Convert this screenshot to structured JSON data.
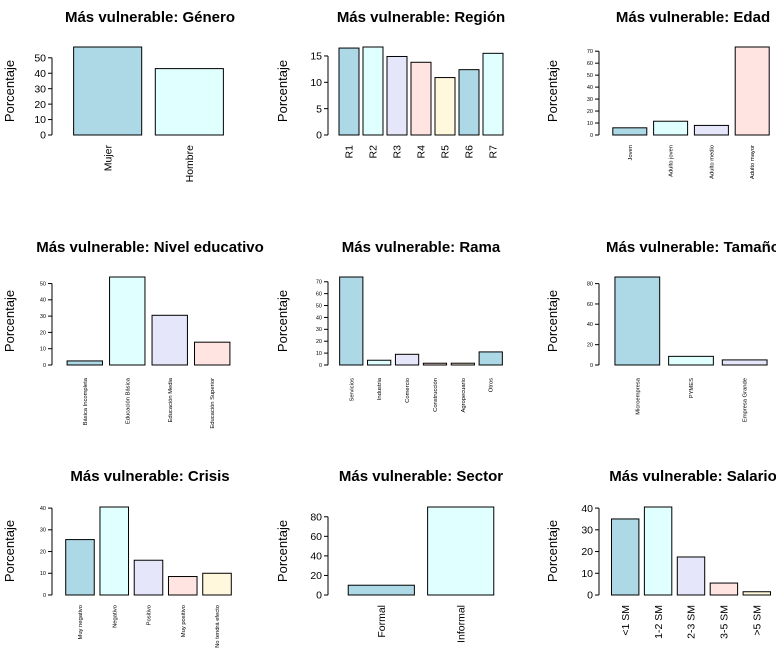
{
  "chart_data": [
    {
      "type": "bar",
      "title": "Más vulnerable: Género",
      "ylabel": "Porcentaje",
      "categories": [
        "Mujer",
        "Hombre"
      ],
      "values": [
        57,
        43
      ],
      "ylim": [
        0,
        57
      ],
      "yticks": [
        0,
        10,
        20,
        30,
        40,
        50
      ],
      "tick_size": "large"
    },
    {
      "type": "bar",
      "title": "Más vulnerable: Región",
      "ylabel": "Porcentaje",
      "categories": [
        "R1",
        "R2",
        "R3",
        "R4",
        "R5",
        "R6",
        "R7"
      ],
      "values": [
        16.5,
        16.7,
        14.9,
        13.8,
        10.9,
        12.4,
        15.5
      ],
      "ylim": [
        0,
        16.7
      ],
      "yticks": [
        0,
        5,
        10,
        15
      ],
      "tick_size": "large"
    },
    {
      "type": "bar",
      "title": "Más vulnerable: Edad",
      "ylabel": "Porcentaje",
      "categories": [
        "Joven",
        "Adulto joven",
        "Adulto medio",
        "Adulto mayor"
      ],
      "values": [
        6,
        11.5,
        8,
        73.5
      ],
      "ylim": [
        0,
        73.5
      ],
      "yticks": [
        0,
        10,
        20,
        30,
        40,
        50,
        60,
        70
      ],
      "tick_size": "small"
    },
    {
      "type": "bar",
      "title": "Más vulnerable: Nivel educativo",
      "ylabel": "Porcentaje",
      "categories": [
        "Básica Incompleta",
        "Educación Básica",
        "Educación Media",
        "Educación Superior"
      ],
      "values": [
        2.5,
        54,
        30.5,
        14
      ],
      "ylim": [
        0,
        54
      ],
      "yticks": [
        0,
        10,
        20,
        30,
        40,
        50
      ],
      "tick_size": "small"
    },
    {
      "type": "bar",
      "title": "Más vulnerable: Rama",
      "ylabel": "Porcentaje",
      "categories": [
        "Servicios",
        "Industria",
        "Comercio",
        "Construcción",
        "Agropecuario",
        "Otros"
      ],
      "values": [
        74,
        4,
        9,
        1.5,
        1.5,
        11
      ],
      "ylim": [
        0,
        74
      ],
      "yticks": [
        0,
        10,
        20,
        30,
        40,
        50,
        60,
        70
      ],
      "tick_size": "small"
    },
    {
      "type": "bar",
      "title": "Más vulnerable: Tamaño",
      "ylabel": "Porcentaje",
      "categories": [
        "Microempresa",
        "PYMES",
        "Empresa Grande"
      ],
      "values": [
        86.5,
        8.5,
        5
      ],
      "ylim": [
        0,
        86.5
      ],
      "yticks": [
        0,
        20,
        40,
        60,
        80
      ],
      "tick_size": "small"
    },
    {
      "type": "bar",
      "title": "Más vulnerable: Crisis",
      "ylabel": "Porcentaje",
      "categories": [
        "Muy negativo",
        "Negativo",
        "Positivo",
        "Muy positivo",
        "No tendrá efecto"
      ],
      "values": [
        25.5,
        40.5,
        16,
        8.5,
        10
      ],
      "ylim": [
        0,
        40.5
      ],
      "yticks": [
        0,
        10,
        20,
        30,
        40
      ],
      "tick_size": "small"
    },
    {
      "type": "bar",
      "title": "Más vulnerable: Sector",
      "ylabel": "Porcentaje",
      "categories": [
        "Formal",
        "Informal"
      ],
      "values": [
        10,
        90
      ],
      "ylim": [
        0,
        90
      ],
      "yticks": [
        0,
        20,
        40,
        60,
        80
      ],
      "tick_size": "large"
    },
    {
      "type": "bar",
      "title": "Más vulnerable: Salario",
      "ylabel": "Porcentaje",
      "categories": [
        "<1 SM",
        "1-2 SM",
        "2-3 SM",
        "3-5 SM",
        ">5 SM"
      ],
      "values": [
        35,
        40.5,
        17.5,
        5.5,
        1.5
      ],
      "ylim": [
        0,
        40.5
      ],
      "yticks": [
        0,
        10,
        20,
        30,
        40
      ],
      "tick_size": "large"
    }
  ],
  "colors": {
    "palette": [
      "#add8e6",
      "#e0ffff",
      "#e6e6fa",
      "#ffe4e1",
      "#fff8dc"
    ],
    "outline": "#000000",
    "background": "#ffffff"
  }
}
